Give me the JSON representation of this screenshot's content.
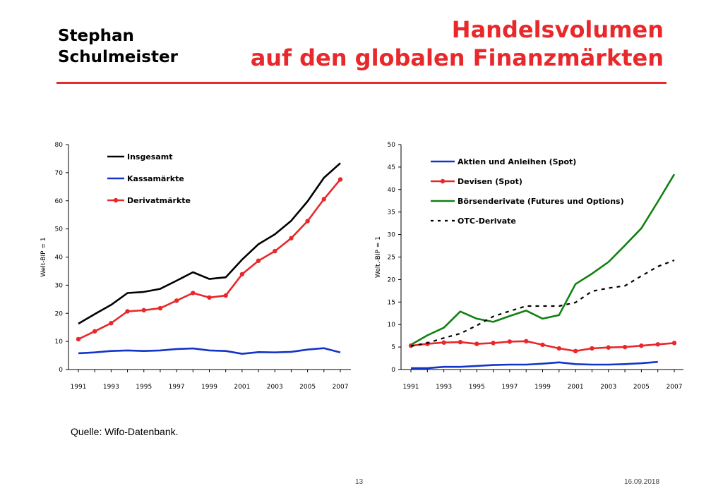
{
  "header": {
    "author_line1": "Stephan",
    "author_line2": "Schulmeister",
    "title_line1": "Handelsvolumen",
    "title_line2": "auf den globalen Finanzmärkten",
    "accent_color": "#e8282b"
  },
  "footer": {
    "source": "Quelle: Wifo-Datenbank.",
    "page_number": "13",
    "date": "16.09.2018"
  },
  "chart_data": [
    {
      "type": "line",
      "title": "",
      "xlabel": "",
      "ylabel": "Welt-BIP = 1",
      "ylim": [
        0,
        80
      ],
      "yticks": [
        0,
        10,
        20,
        30,
        40,
        50,
        60,
        70,
        80
      ],
      "x": [
        1991,
        1992,
        1993,
        1994,
        1995,
        1996,
        1997,
        1998,
        1999,
        2000,
        2001,
        2002,
        2003,
        2004,
        2005,
        2006,
        2007
      ],
      "xtick_labels": [
        "1991",
        "1993",
        "1995",
        "1997",
        "1999",
        "2001",
        "2003",
        "2005",
        "2007"
      ],
      "legend_placement": "top-left",
      "grid": false,
      "series": [
        {
          "name": "Insgesamt",
          "color": "#000000",
          "marker": "none",
          "dash": "solid",
          "values": [
            16.3,
            19.7,
            23.0,
            27.2,
            27.6,
            28.7,
            31.6,
            34.6,
            32.2,
            32.8,
            39.1,
            44.6,
            48.1,
            52.9,
            59.8,
            68.2,
            73.4
          ]
        },
        {
          "name": "Kassamärkte",
          "color": "#1434c8",
          "marker": "none",
          "dash": "solid",
          "values": [
            5.8,
            6.1,
            6.6,
            6.8,
            6.6,
            6.8,
            7.3,
            7.5,
            6.8,
            6.6,
            5.6,
            6.2,
            6.1,
            6.3,
            7.1,
            7.6,
            6.1
          ]
        },
        {
          "name": "Derivatmärkte",
          "color": "#e8282b",
          "marker": "circle",
          "dash": "solid",
          "values": [
            10.8,
            13.6,
            16.5,
            20.7,
            21.1,
            21.8,
            24.5,
            27.2,
            25.6,
            26.3,
            33.9,
            38.7,
            42.1,
            46.7,
            52.8,
            60.6,
            67.6
          ]
        }
      ]
    },
    {
      "type": "line",
      "title": "",
      "xlabel": "",
      "ylabel": "Welt.-BIP = 1",
      "ylim": [
        0,
        50
      ],
      "yticks": [
        0,
        5,
        10,
        15,
        20,
        25,
        30,
        35,
        40,
        45,
        50
      ],
      "x": [
        1991,
        1992,
        1993,
        1994,
        1995,
        1996,
        1997,
        1998,
        1999,
        2000,
        2001,
        2002,
        2003,
        2004,
        2005,
        2006,
        2007
      ],
      "xtick_labels": [
        "1991",
        "1993",
        "1995",
        "1997",
        "1999",
        "2001",
        "2003",
        "2005",
        "2007"
      ],
      "legend_placement": "top-left",
      "grid": false,
      "series": [
        {
          "name": "Aktien und Anleihen (Spot)",
          "color": "#1434c8",
          "marker": "none",
          "dash": "solid",
          "x": [
            1991,
            1992,
            1993,
            1994,
            1995,
            1996,
            1997,
            1998,
            1999,
            2000,
            2001,
            2002,
            2003,
            2004,
            2005,
            2006
          ],
          "values": [
            0.3,
            0.3,
            0.6,
            0.6,
            0.8,
            1.0,
            1.1,
            1.1,
            1.3,
            1.6,
            1.2,
            1.1,
            1.1,
            1.2,
            1.4,
            1.7
          ]
        },
        {
          "name": "Devisen (Spot)",
          "color": "#e8282b",
          "marker": "circle",
          "dash": "solid",
          "values": [
            5.3,
            5.7,
            6.0,
            6.1,
            5.7,
            5.9,
            6.2,
            6.3,
            5.5,
            4.7,
            4.1,
            4.7,
            4.9,
            5.0,
            5.3,
            5.6,
            5.9
          ]
        },
        {
          "name": "Börsenderivate (Futures und Options)",
          "color": "#128012",
          "marker": "none",
          "dash": "solid",
          "values": [
            5.5,
            7.6,
            9.3,
            12.9,
            11.3,
            10.6,
            11.9,
            13.1,
            11.3,
            12.1,
            19.0,
            21.3,
            23.9,
            27.6,
            31.4,
            37.3,
            43.4
          ]
        },
        {
          "name": "OTC-Derivate",
          "color": "#000000",
          "marker": "none",
          "dash": "dashed",
          "values": [
            5.2,
            5.9,
            7.0,
            8.0,
            9.8,
            11.8,
            13.0,
            14.1,
            14.1,
            14.1,
            14.9,
            17.4,
            18.1,
            18.6,
            20.8,
            22.9,
            24.3
          ]
        }
      ]
    }
  ]
}
